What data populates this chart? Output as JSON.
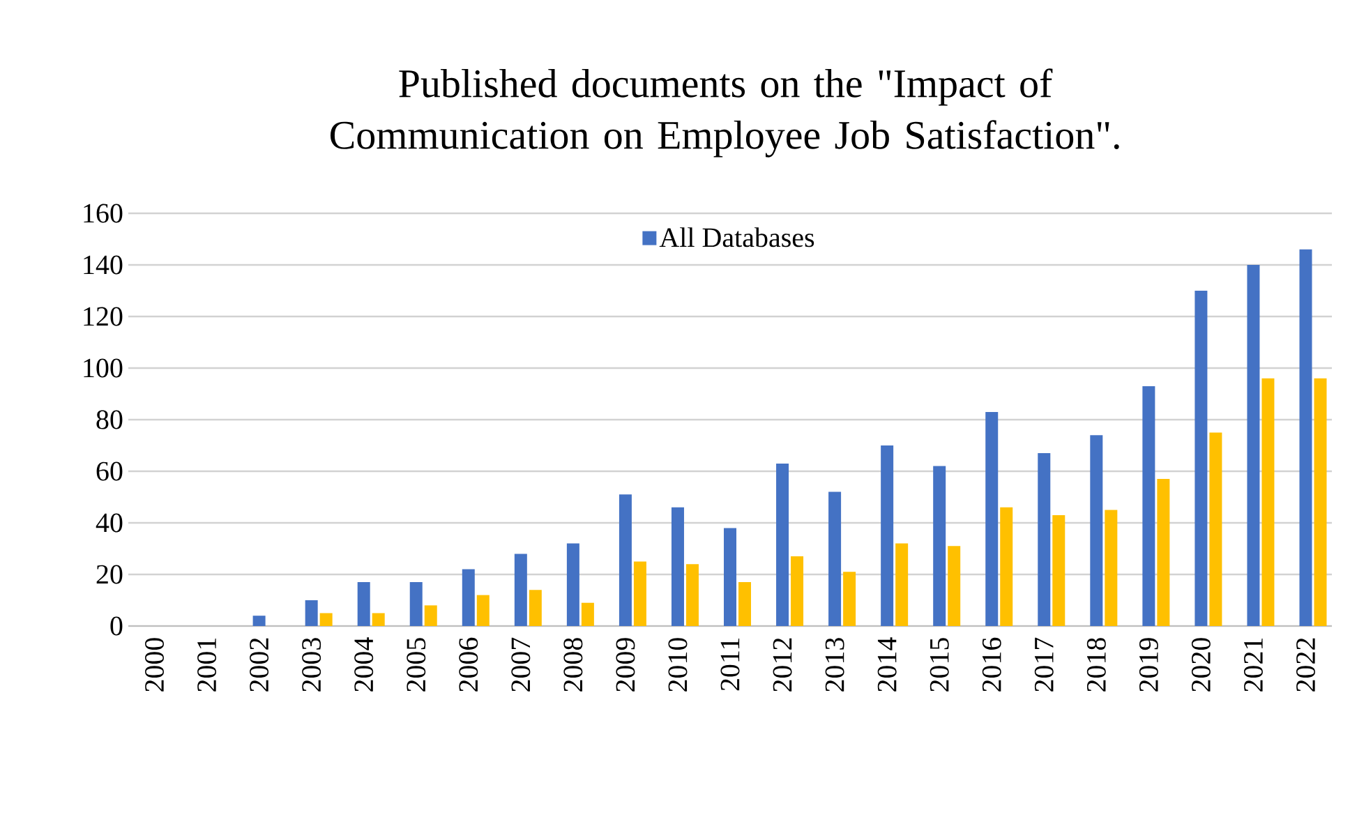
{
  "chart_data": {
    "type": "bar",
    "title": "Published documents on the \"Impact of Communication on Employee Job Satisfaction\".",
    "categories": [
      "2000",
      "2001",
      "2002",
      "2003",
      "2004",
      "2005",
      "2006",
      "2007",
      "2008",
      "2009",
      "2010",
      "2011",
      "2012",
      "2013",
      "2014",
      "2015",
      "2016",
      "2017",
      "2018",
      "2019",
      "2020",
      "2021",
      "2022"
    ],
    "series": [
      {
        "name": "All Databases",
        "color": "#4472c4",
        "values": [
          0,
          0,
          4,
          10,
          17,
          17,
          22,
          28,
          32,
          51,
          46,
          38,
          63,
          52,
          70,
          62,
          83,
          67,
          74,
          93,
          130,
          140,
          146
        ]
      },
      {
        "color": "#ffc000",
        "values": [
          0,
          0,
          0,
          5,
          5,
          8,
          12,
          14,
          9,
          25,
          24,
          17,
          27,
          21,
          32,
          31,
          46,
          43,
          45,
          57,
          75,
          96,
          96
        ]
      }
    ],
    "ylim": [
      0,
      160
    ],
    "yticks": [
      0,
      20,
      40,
      60,
      80,
      100,
      120,
      140,
      160
    ],
    "grid": "y",
    "legend": "top"
  }
}
